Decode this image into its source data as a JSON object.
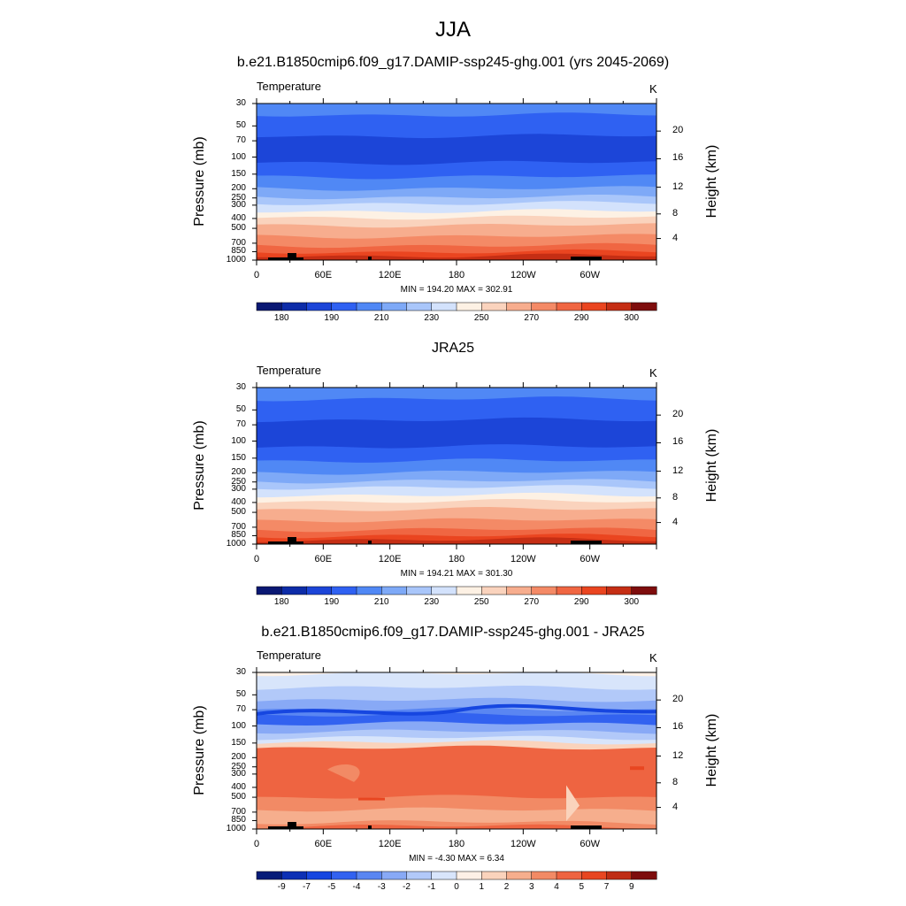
{
  "chart_data": {
    "type": "heatmap",
    "title": "JJA",
    "pressure_levels": [
      "30",
      "50",
      "70",
      "100",
      "150",
      "200",
      "250",
      "300",
      "400",
      "500",
      "700",
      "850",
      "1000"
    ],
    "height_ticks": [
      "20",
      "16",
      "12",
      "8",
      "4"
    ],
    "x_ticks": [
      "0",
      "60E",
      "120E",
      "180",
      "120W",
      "60W"
    ],
    "panels": [
      {
        "name": "model",
        "title": "b.e21.B1850cmip6.f09_g17.DAMIP-ssp245-ghg.001 (yrs 2045-2069)",
        "variable": "Temperature",
        "units": "K",
        "ylabel": "Pressure (mb)",
        "ylabel_right": "Height (km)",
        "minmax": "MIN = 194.20  MAX = 302.91",
        "min": 194.2,
        "max": 302.91,
        "colorbar_labels": [
          "180",
          "190",
          "210",
          "230",
          "250",
          "270",
          "290",
          "300"
        ]
      },
      {
        "name": "obs",
        "title": "JRA25",
        "variable": "Temperature",
        "units": "K",
        "ylabel": "Pressure (mb)",
        "ylabel_right": "Height (km)",
        "minmax": "MIN = 194.21  MAX = 301.30",
        "min": 194.21,
        "max": 301.3,
        "colorbar_labels": [
          "180",
          "190",
          "210",
          "230",
          "250",
          "270",
          "290",
          "300"
        ]
      },
      {
        "name": "diff",
        "title": "b.e21.B1850cmip6.f09_g17.DAMIP-ssp245-ghg.001 - JRA25",
        "variable": "Temperature",
        "units": "K",
        "ylabel": "Pressure (mb)",
        "ylabel_right": "Height (km)",
        "minmax": "MIN =  -4.30  MAX =   6.34",
        "min": -4.3,
        "max": 6.34,
        "colorbar_labels": [
          "-9",
          "-7",
          "-5",
          "-4",
          "-3",
          "-2",
          "-1",
          "0",
          "1",
          "2",
          "3",
          "4",
          "5",
          "7",
          "9"
        ]
      }
    ],
    "colors": {
      "abs_scale": [
        "#0a1873",
        "#0d2ca8",
        "#1c45d8",
        "#2f61f2",
        "#5088f5",
        "#7ea9f7",
        "#a9c6fa",
        "#d3e2fc",
        "#fdf1e4",
        "#fad3bd",
        "#f7ad8e",
        "#f48a66",
        "#f06642",
        "#ea4520",
        "#c52e14",
        "#7e0d0d"
      ],
      "diff_scale": [
        "#061c78",
        "#0c30b5",
        "#1646e0",
        "#3262f0",
        "#5a86f2",
        "#88a9f6",
        "#b2c9f9",
        "#d8e5fb",
        "#fdf0e6",
        "#fad3bc",
        "#f6ae8d",
        "#f28a65",
        "#ee6441",
        "#e84621",
        "#bf2d14",
        "#7d0c0c"
      ]
    }
  }
}
